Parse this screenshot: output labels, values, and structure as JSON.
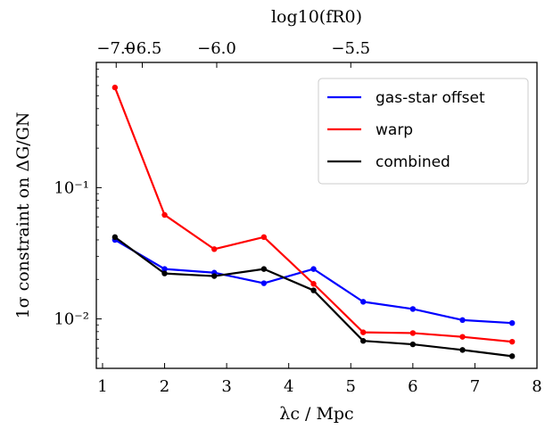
{
  "chart_data": {
    "type": "line",
    "xlabel": "λc / Mpc",
    "ylabel": "1σ constraint on ΔG/GN",
    "top_xlabel": "log10(fR0)",
    "x_ticks": [
      1,
      2,
      3,
      4,
      5,
      6,
      7,
      8
    ],
    "x_tick_labels": [
      "1",
      "2",
      "3",
      "4",
      "5",
      "6",
      "7",
      "8"
    ],
    "xlim": [
      0.9,
      8.0
    ],
    "yscale": "log",
    "ylim": [
      0.0042,
      0.9
    ],
    "y_ticks": [
      0.01,
      0.1
    ],
    "y_tick_labels": [
      "10⁻²",
      "10⁻¹"
    ],
    "top_ticks": [
      {
        "x": 1.22,
        "label": "−7.0"
      },
      {
        "x": 1.64,
        "label": "−6.5"
      },
      {
        "x": 2.84,
        "label": "−6.0"
      },
      {
        "x": 5.0,
        "label": "−5.5"
      }
    ],
    "legend_position": "top-right",
    "x": [
      1.2,
      2.0,
      2.8,
      3.6,
      4.4,
      5.2,
      6.0,
      6.8,
      7.6
    ],
    "series": [
      {
        "name": "gas-star offset",
        "color": "#0000ff",
        "values": [
          0.04,
          0.024,
          0.0225,
          0.0187,
          0.024,
          0.0135,
          0.0119,
          0.0098,
          0.0093
        ]
      },
      {
        "name": "warp",
        "color": "#ff0000",
        "values": [
          0.58,
          0.062,
          0.034,
          0.042,
          0.0185,
          0.0079,
          0.0078,
          0.0073,
          0.0067
        ]
      },
      {
        "name": "combined",
        "color": "#000000",
        "values": [
          0.042,
          0.0222,
          0.0212,
          0.024,
          0.0165,
          0.0068,
          0.0064,
          0.0058,
          0.0052
        ]
      }
    ]
  }
}
